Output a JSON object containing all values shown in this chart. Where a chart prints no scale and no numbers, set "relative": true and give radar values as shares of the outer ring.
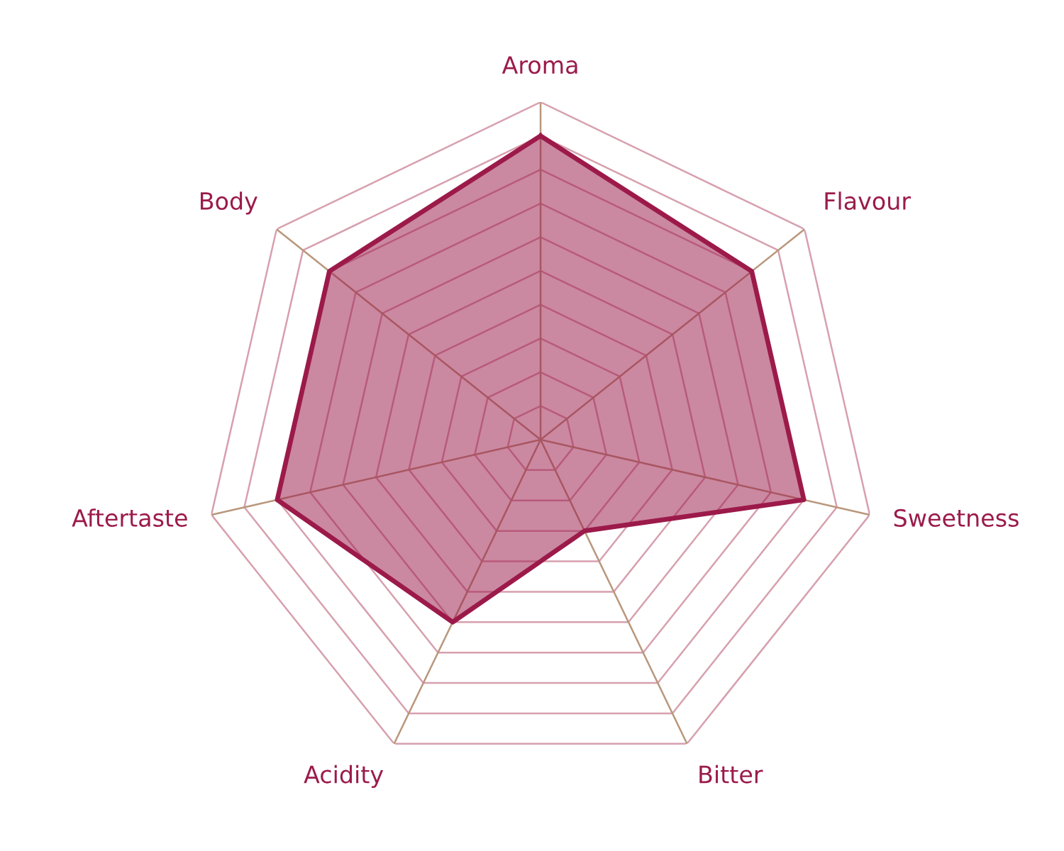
{
  "chart_data": {
    "type": "radar",
    "relative": true,
    "categories": [
      "Aroma",
      "Flavour",
      "Sweetness",
      "Bitter",
      "Acidity",
      "Aftertaste",
      "Body"
    ],
    "series": [
      {
        "color": "#9c1a4a",
        "values": [
          0.9,
          0.8,
          0.8,
          0.3,
          0.6,
          0.8,
          0.8
        ]
      }
    ],
    "grid": true
  }
}
